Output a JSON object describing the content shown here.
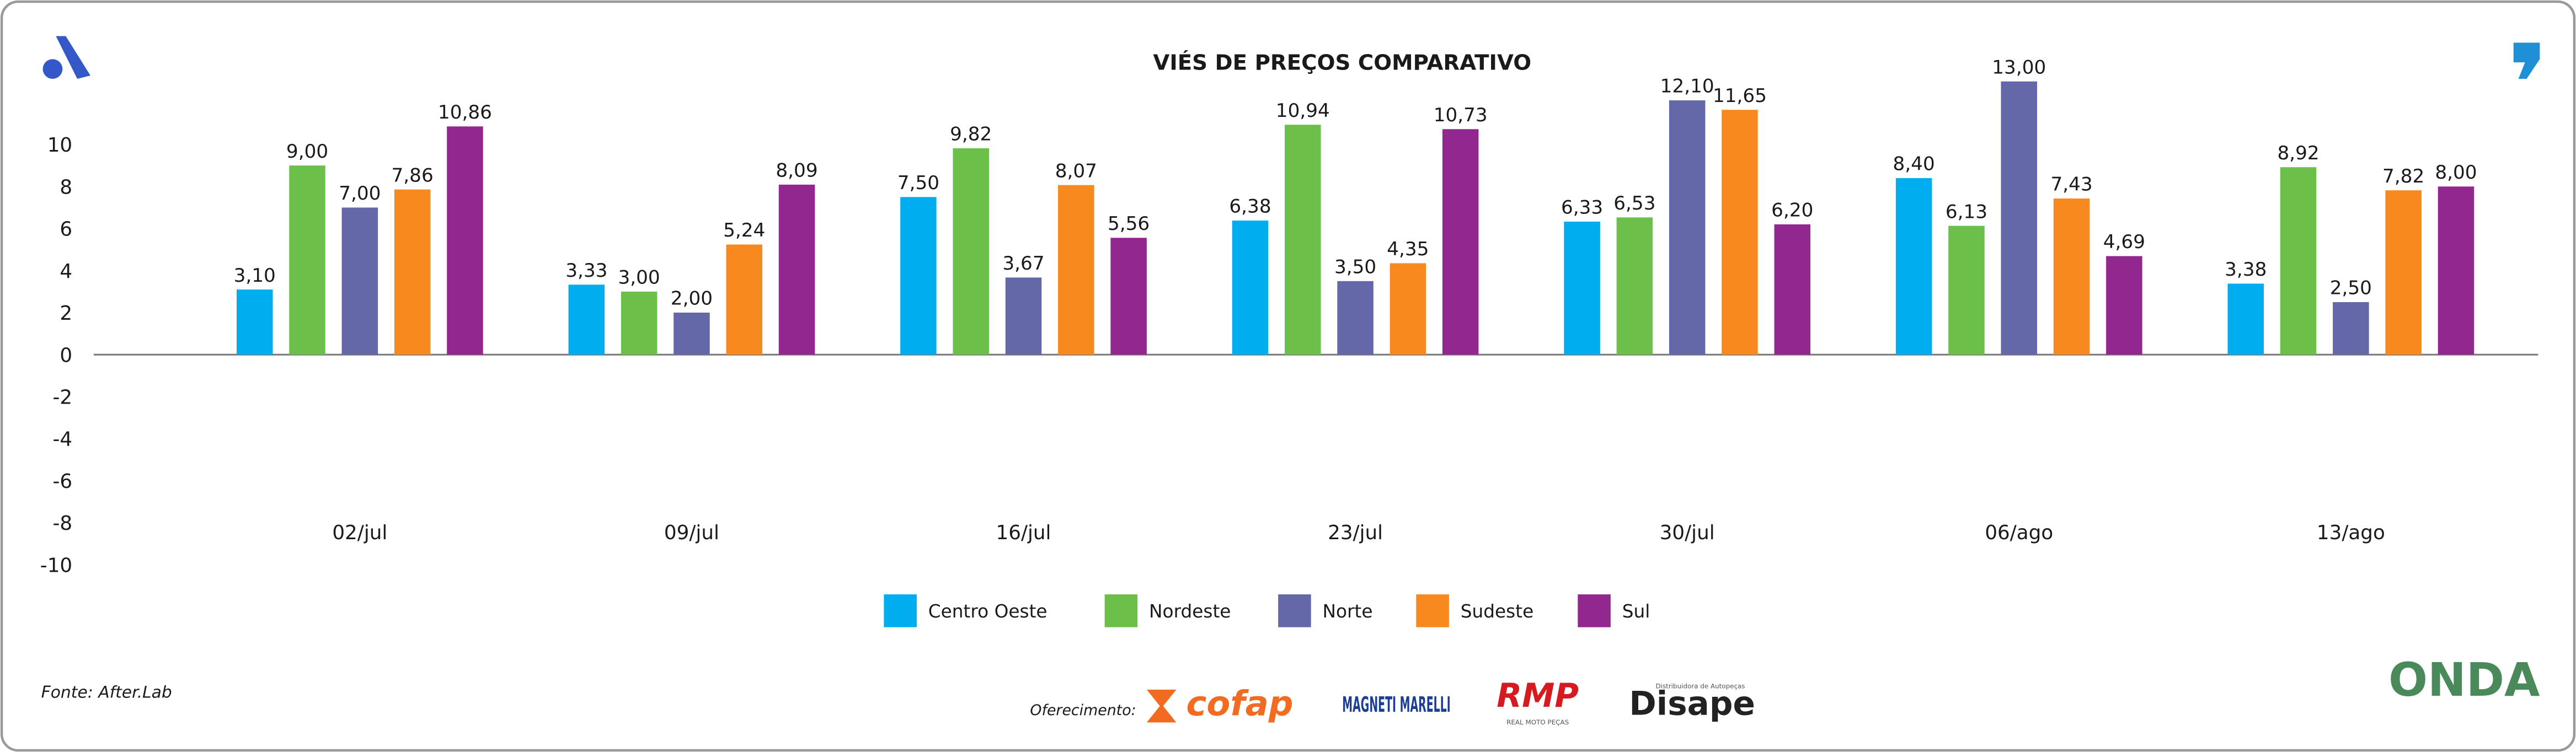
{
  "chart_data": {
    "type": "bar",
    "title": "VIÉS DE PREÇOS COMPARATIVO",
    "categories": [
      "02/jul",
      "09/jul",
      "16/jul",
      "23/jul",
      "30/jul",
      "06/ago",
      "13/ago"
    ],
    "series": [
      {
        "name": "Centro Oeste",
        "color": "#00aeef",
        "values": [
          3.1,
          3.33,
          7.5,
          6.38,
          6.33,
          8.4,
          3.38
        ],
        "value_labels": [
          "3,10",
          "3,33",
          "7,50",
          "6,38",
          "6,33",
          "8,40",
          "3,38"
        ]
      },
      {
        "name": "Nordeste",
        "color": "#6cc04a",
        "values": [
          9.0,
          3.0,
          9.82,
          10.94,
          6.53,
          6.13,
          8.92
        ],
        "value_labels": [
          "9,00",
          "3,00",
          "9,82",
          "10,94",
          "6,53",
          "6,13",
          "8,92"
        ]
      },
      {
        "name": "Norte",
        "color": "#6468a8",
        "values": [
          7.0,
          2.0,
          3.67,
          3.5,
          12.1,
          13.0,
          2.5
        ],
        "value_labels": [
          "7,00",
          "2,00",
          "3,67",
          "3,50",
          "12,10",
          "13,00",
          "2,50"
        ]
      },
      {
        "name": "Sudeste",
        "color": "#f7891f",
        "values": [
          7.86,
          5.24,
          8.07,
          4.35,
          11.65,
          7.43,
          7.82
        ],
        "value_labels": [
          "7,86",
          "5,24",
          "8,07",
          "4,35",
          "11,65",
          "7,43",
          "7,82"
        ]
      },
      {
        "name": "Sul",
        "color": "#92278f",
        "values": [
          10.86,
          8.09,
          5.56,
          10.73,
          6.2,
          4.69,
          8.0
        ],
        "value_labels": [
          "10,86",
          "8,09",
          "5,56",
          "10,73",
          "6,20",
          "4,69",
          "8,00"
        ]
      }
    ],
    "ylim": [
      -10,
      10
    ],
    "yticks": [
      -10,
      -8,
      -6,
      -4,
      -2,
      0,
      2,
      4,
      6,
      8,
      10
    ],
    "grid": false,
    "legend": "bottom"
  },
  "footer": {
    "source": "Fonte: After.Lab",
    "sponsor_label": "Oferecimento:",
    "sponsors": [
      "cofap",
      "MAGNETI MARELLI",
      "RMP",
      "REAL MOTO PEÇAS",
      "Disape",
      "Distribuidora de Autopeças",
      "ONDA"
    ]
  }
}
